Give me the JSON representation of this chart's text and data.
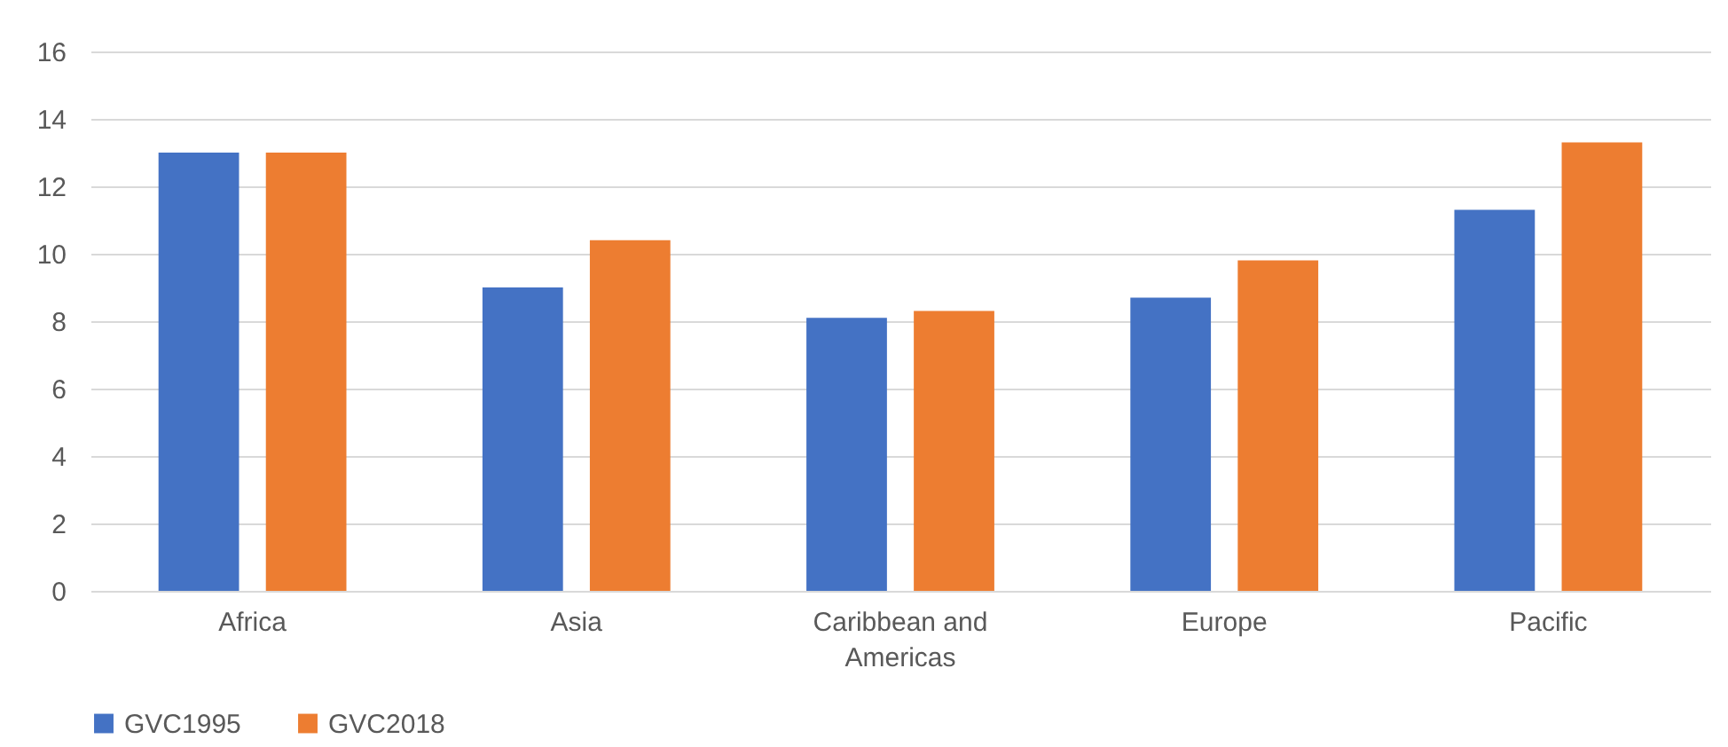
{
  "chart_data": {
    "type": "bar",
    "categories": [
      "Africa",
      "Asia",
      "Caribbean and Americas",
      "Europe",
      "Pacific"
    ],
    "series": [
      {
        "name": "GVC1995",
        "color": "#4472c4",
        "values": [
          13.0,
          9.0,
          8.1,
          8.7,
          11.3
        ]
      },
      {
        "name": "GVC2018",
        "color": "#ed7d31",
        "values": [
          13.0,
          10.4,
          8.3,
          9.8,
          13.3
        ]
      }
    ],
    "ylim": [
      0,
      16
    ],
    "yticks": [
      0,
      2,
      4,
      6,
      8,
      10,
      12,
      14,
      16
    ],
    "grid": "y",
    "legend": "bottom"
  }
}
